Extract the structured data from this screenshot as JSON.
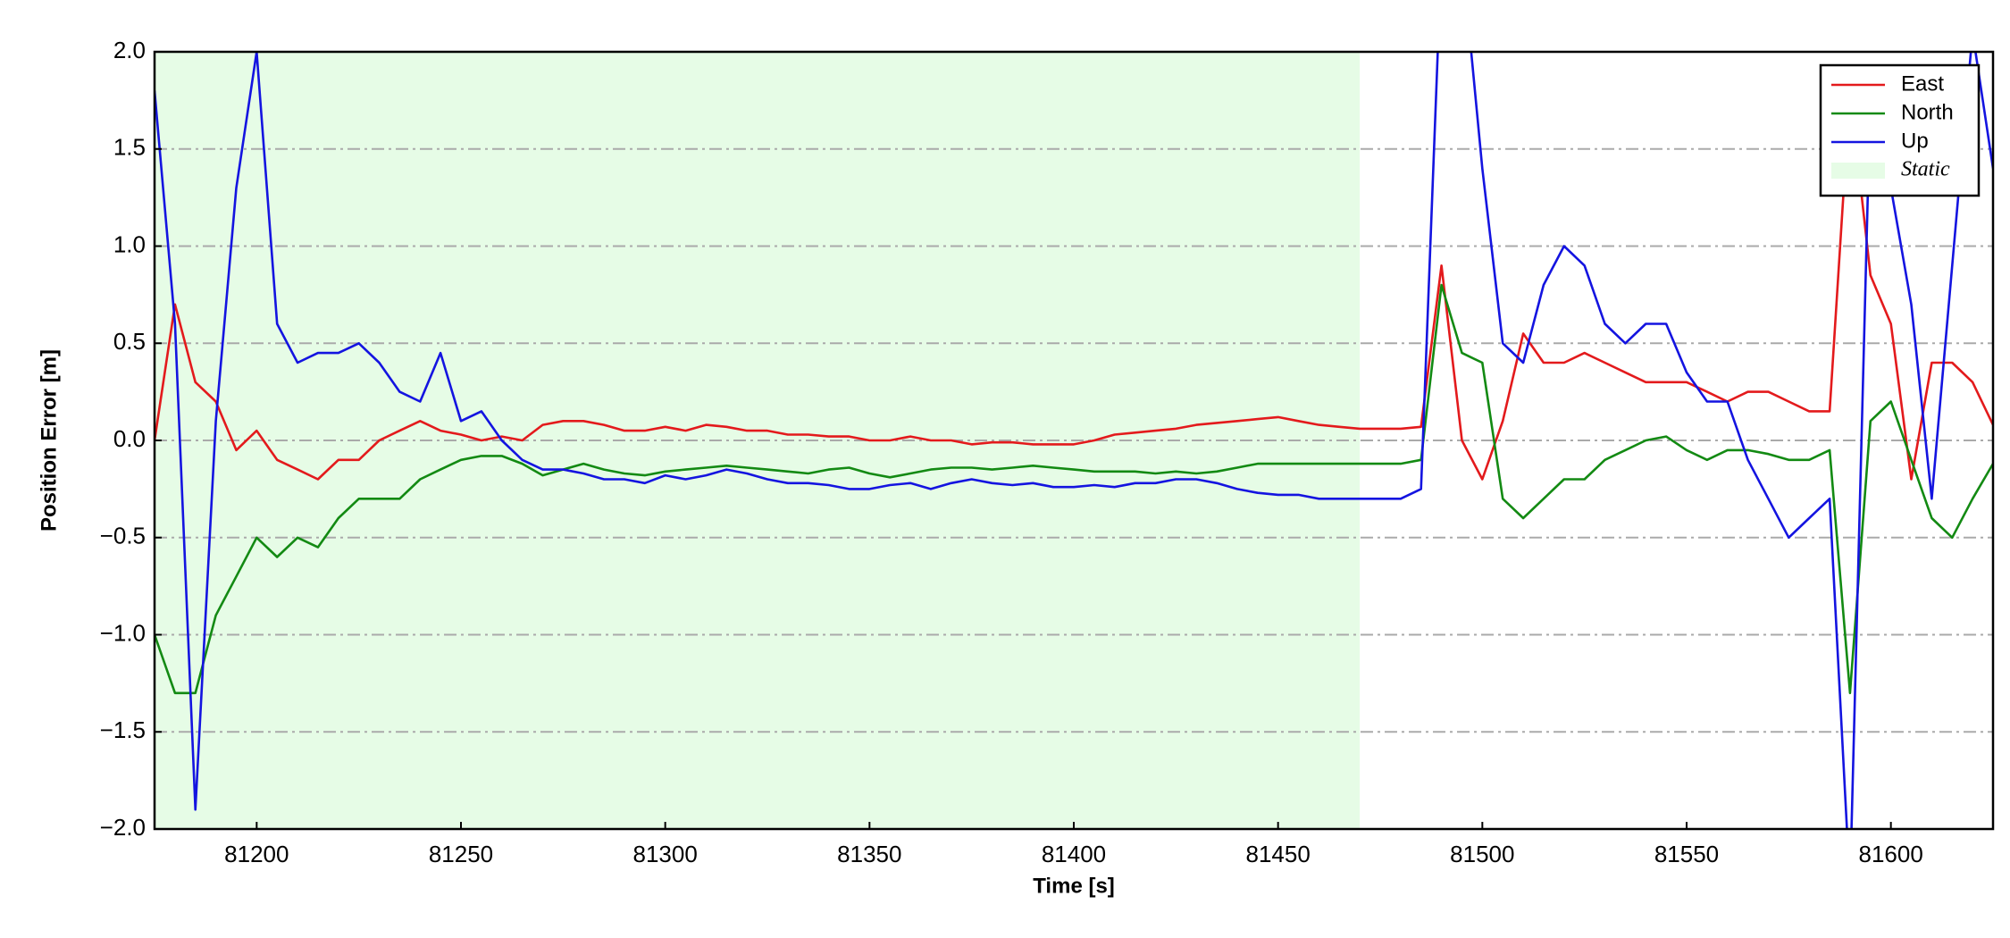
{
  "chart_data": {
    "type": "line",
    "x_label": "Time [s]",
    "y_label": "Position Error [m]",
    "x": [
      81175,
      81180,
      81185,
      81190,
      81195,
      81200,
      81205,
      81210,
      81215,
      81220,
      81225,
      81230,
      81235,
      81240,
      81245,
      81250,
      81255,
      81260,
      81265,
      81270,
      81275,
      81280,
      81285,
      81290,
      81295,
      81300,
      81305,
      81310,
      81315,
      81320,
      81325,
      81330,
      81335,
      81340,
      81345,
      81350,
      81355,
      81360,
      81365,
      81370,
      81375,
      81380,
      81385,
      81390,
      81395,
      81400,
      81405,
      81410,
      81415,
      81420,
      81425,
      81430,
      81435,
      81440,
      81445,
      81450,
      81455,
      81460,
      81465,
      81470,
      81475,
      81480,
      81485,
      81490,
      81495,
      81500,
      81505,
      81510,
      81515,
      81520,
      81525,
      81530,
      81535,
      81540,
      81545,
      81550,
      81555,
      81560,
      81565,
      81570,
      81575,
      81580,
      81585,
      81590,
      81595,
      81600,
      81605,
      81610,
      81615,
      81620,
      81625
    ],
    "series": [
      {
        "name": "East",
        "color": "#e31a1c",
        "values": [
          0.0,
          0.7,
          0.3,
          0.2,
          -0.05,
          0.05,
          -0.1,
          -0.15,
          -0.2,
          -0.1,
          -0.1,
          0.0,
          0.05,
          0.1,
          0.05,
          0.03,
          0.0,
          0.02,
          0.0,
          0.08,
          0.1,
          0.1,
          0.08,
          0.05,
          0.05,
          0.07,
          0.05,
          0.08,
          0.07,
          0.05,
          0.05,
          0.03,
          0.03,
          0.02,
          0.02,
          0.0,
          0.0,
          0.02,
          0.0,
          0.0,
          -0.02,
          -0.01,
          -0.01,
          -0.02,
          -0.02,
          -0.02,
          0.0,
          0.03,
          0.04,
          0.05,
          0.06,
          0.08,
          0.09,
          0.1,
          0.11,
          0.12,
          0.1,
          0.08,
          0.07,
          0.06,
          0.06,
          0.06,
          0.07,
          0.9,
          0.0,
          -0.2,
          0.1,
          0.55,
          0.4,
          0.4,
          0.45,
          0.4,
          0.35,
          0.3,
          0.3,
          0.3,
          0.25,
          0.2,
          0.25,
          0.25,
          0.2,
          0.15,
          0.15,
          1.8,
          0.85,
          0.6,
          -0.2,
          0.4,
          0.4,
          0.3,
          0.08
        ]
      },
      {
        "name": "North",
        "color": "#138a13",
        "values": [
          -1.0,
          -1.3,
          -1.3,
          -0.9,
          -0.7,
          -0.5,
          -0.6,
          -0.5,
          -0.55,
          -0.4,
          -0.3,
          -0.3,
          -0.3,
          -0.2,
          -0.15,
          -0.1,
          -0.08,
          -0.08,
          -0.12,
          -0.18,
          -0.15,
          -0.12,
          -0.15,
          -0.17,
          -0.18,
          -0.16,
          -0.15,
          -0.14,
          -0.13,
          -0.14,
          -0.15,
          -0.16,
          -0.17,
          -0.15,
          -0.14,
          -0.17,
          -0.19,
          -0.17,
          -0.15,
          -0.14,
          -0.14,
          -0.15,
          -0.14,
          -0.13,
          -0.14,
          -0.15,
          -0.16,
          -0.16,
          -0.16,
          -0.17,
          -0.16,
          -0.17,
          -0.16,
          -0.14,
          -0.12,
          -0.12,
          -0.12,
          -0.12,
          -0.12,
          -0.12,
          -0.12,
          -0.12,
          -0.1,
          0.8,
          0.45,
          0.4,
          -0.3,
          -0.4,
          -0.3,
          -0.2,
          -0.2,
          -0.1,
          -0.05,
          0.0,
          0.02,
          -0.05,
          -0.1,
          -0.05,
          -0.05,
          -0.07,
          -0.1,
          -0.1,
          -0.05,
          -1.3,
          0.1,
          0.2,
          -0.1,
          -0.4,
          -0.5,
          -0.3,
          -0.12
        ]
      },
      {
        "name": "Up",
        "color": "#1414e0",
        "values": [
          1.8,
          0.6,
          -1.9,
          0.1,
          1.3,
          2.0,
          0.6,
          0.4,
          0.45,
          0.45,
          0.5,
          0.4,
          0.25,
          0.2,
          0.45,
          0.1,
          0.15,
          0.0,
          -0.1,
          -0.15,
          -0.15,
          -0.17,
          -0.2,
          -0.2,
          -0.22,
          -0.18,
          -0.2,
          -0.18,
          -0.15,
          -0.17,
          -0.2,
          -0.22,
          -0.22,
          -0.23,
          -0.25,
          -0.25,
          -0.23,
          -0.22,
          -0.25,
          -0.22,
          -0.2,
          -0.22,
          -0.23,
          -0.22,
          -0.24,
          -0.24,
          -0.23,
          -0.24,
          -0.22,
          -0.22,
          -0.2,
          -0.2,
          -0.22,
          -0.25,
          -0.27,
          -0.28,
          -0.28,
          -0.3,
          -0.3,
          -0.3,
          -0.3,
          -0.3,
          -0.25,
          2.5,
          2.5,
          1.4,
          0.5,
          0.4,
          0.8,
          1.0,
          0.9,
          0.6,
          0.5,
          0.6,
          0.6,
          0.35,
          0.2,
          0.2,
          -0.1,
          -0.3,
          -0.5,
          -0.4,
          -0.3,
          -2.3,
          1.8,
          1.3,
          0.7,
          -0.3,
          0.9,
          2.1,
          1.4
        ]
      }
    ],
    "shaded_regions": [
      {
        "name": "Static",
        "color": "#e6fce6",
        "start": 81175,
        "end": 81470
      }
    ],
    "xlim": [
      81175,
      81625
    ],
    "xticks": [
      81200,
      81250,
      81300,
      81350,
      81400,
      81450,
      81500,
      81550,
      81600
    ],
    "ylim": [
      -2,
      2
    ],
    "yticks": [
      {
        "value": -2,
        "label": "−2.0"
      },
      {
        "value": -1.5,
        "label": "−1.5"
      },
      {
        "value": -1,
        "label": "−1.0"
      },
      {
        "value": -0.5,
        "label": "−0.5"
      },
      {
        "value": 0,
        "label": "0.0"
      },
      0.5,
      {
        "value": 1,
        "label": "1.0"
      },
      1.5,
      {
        "value": 2,
        "label": "2.0"
      }
    ],
    "grid": true,
    "legend": "upper right"
  }
}
